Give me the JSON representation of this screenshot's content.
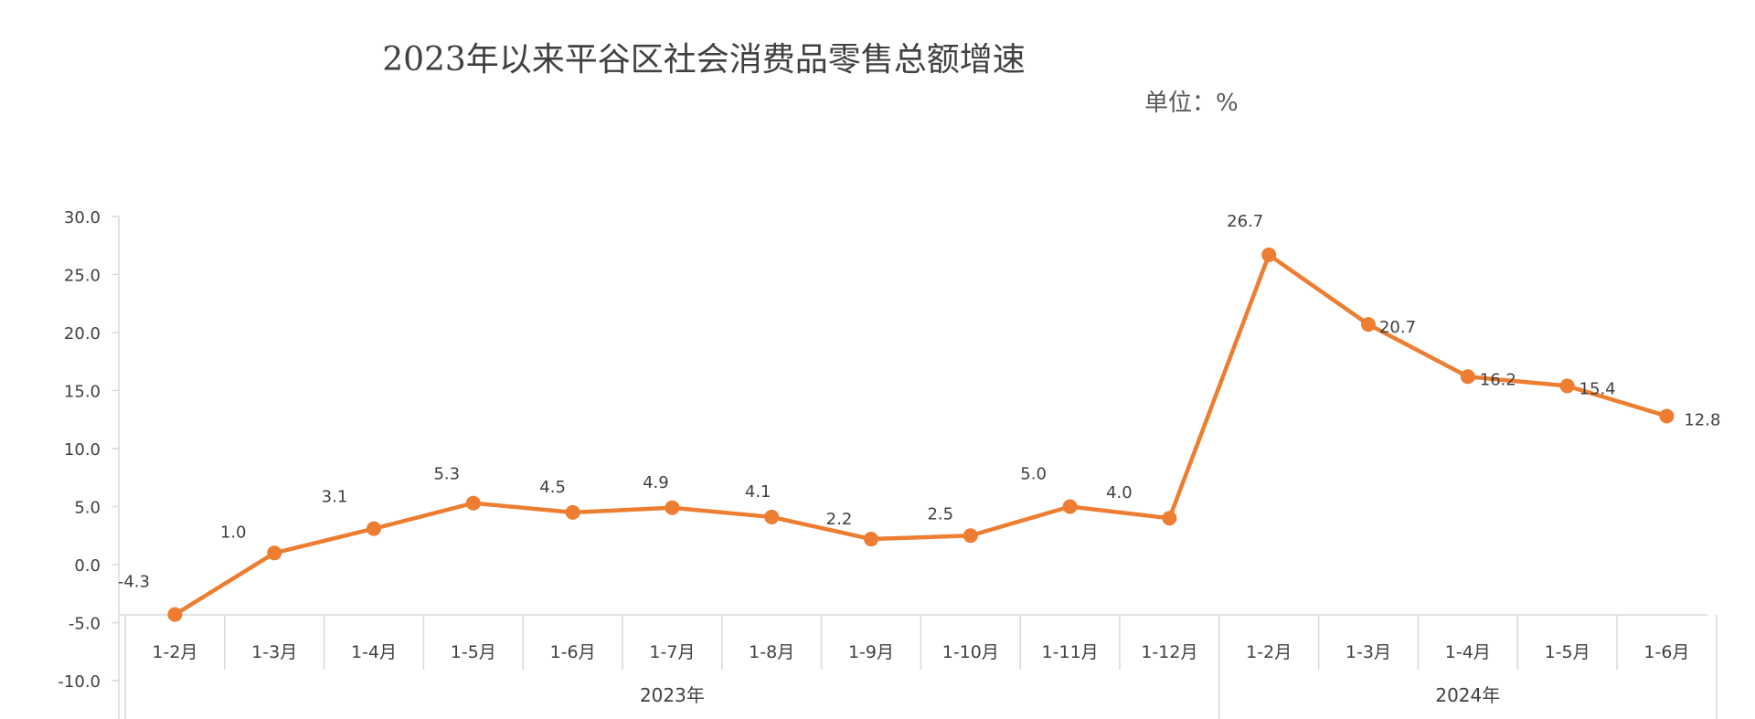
{
  "chart_data": {
    "type": "line",
    "title": "2023年以来平谷区社会消费品零售总额增速",
    "unit_label": "单位：%",
    "categories": [
      "1-2月",
      "1-3月",
      "1-4月",
      "1-5月",
      "1-6月",
      "1-7月",
      "1-8月",
      "1-9月",
      "1-10月",
      "1-11月",
      "1-12月",
      "1-2月",
      "1-3月",
      "1-4月",
      "1-5月",
      "1-6月"
    ],
    "groups": [
      {
        "label": "2023年",
        "start": 0,
        "end": 10
      },
      {
        "label": "2024年",
        "start": 11,
        "end": 15
      }
    ],
    "series": [
      {
        "values": [
          -4.3,
          1.0,
          3.1,
          5.3,
          4.5,
          4.9,
          4.1,
          2.2,
          2.5,
          5.0,
          4.0,
          26.7,
          20.7,
          16.2,
          15.4,
          12.8
        ]
      }
    ],
    "data_labels": [
      "-4.3",
      "1.0",
      "3.1",
      "5.3",
      "4.5",
      "4.9",
      "4.1",
      "2.2",
      "2.5",
      "5.0",
      "4.0",
      "26.7",
      "20.7",
      "16.2",
      "15.4",
      "12.8"
    ],
    "y_ticks": [
      "30.0",
      "25.0",
      "20.0",
      "15.0",
      "10.0",
      "5.0",
      "0.0",
      "-5.0",
      "-10.0"
    ],
    "ylim": [
      -10,
      30
    ],
    "grid": false,
    "legend": "none",
    "line_color": "#ED7D31",
    "axis_color": "#D9D9D9"
  }
}
